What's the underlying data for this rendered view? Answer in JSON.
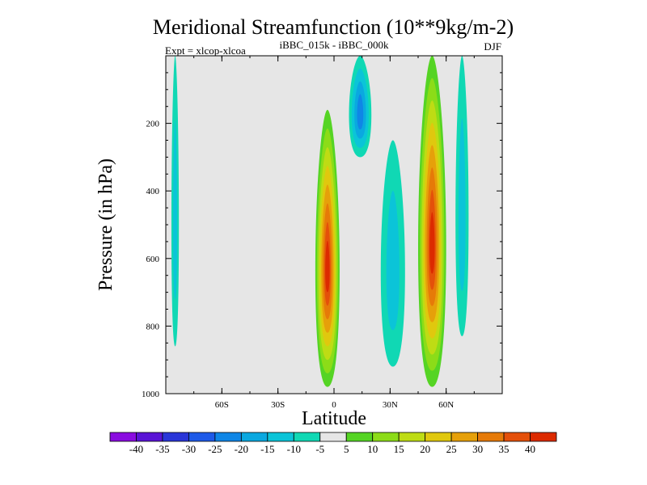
{
  "chart_data": {
    "type": "heatmap",
    "title": "Meridional Streamfunction (10**9kg/m-2)",
    "subtitle": "iBBC_015k - iBBC_000k",
    "experiment_label": "Expt = xlcop-xlcoa",
    "season": "DJF",
    "xlabel": "Latitude",
    "ylabel": "Pressure (in hPa)",
    "xlim": [
      -90,
      90
    ],
    "ylim": [
      1000,
      0
    ],
    "x_ticks": [
      {
        "value": -60,
        "label": "60S"
      },
      {
        "value": -30,
        "label": "30S"
      },
      {
        "value": 0,
        "label": "0"
      },
      {
        "value": 30,
        "label": "30N"
      },
      {
        "value": 60,
        "label": "60N"
      }
    ],
    "y_ticks": [
      {
        "value": 200,
        "label": "200"
      },
      {
        "value": 400,
        "label": "400"
      },
      {
        "value": 600,
        "label": "600"
      },
      {
        "value": 800,
        "label": "800"
      },
      {
        "value": 1000,
        "label": "1000"
      }
    ],
    "background_color": "#e6e6e6",
    "colorbar": {
      "levels": [
        "-40",
        "-35",
        "-30",
        "-25",
        "-20",
        "-15",
        "-10",
        "-5",
        "5",
        "10",
        "15",
        "20",
        "25",
        "30",
        "35",
        "40"
      ],
      "colors": [
        "#8a0ce0",
        "#5a14d6",
        "#2a36d8",
        "#1e5ae8",
        "#0f86e6",
        "#0aa8e0",
        "#0bc4d8",
        "#10d8b4",
        "#e6e6e6",
        "#55d424",
        "#8cdc18",
        "#bedc14",
        "#e0c80e",
        "#e6a00a",
        "#e67a08",
        "#e4500a",
        "#dc2a00"
      ]
    },
    "features": [
      {
        "name": "cell-10S-3N",
        "lat_range": [
          -10,
          3
        ],
        "p_range": [
          160,
          980
        ],
        "peak_value": 40,
        "sign": "positive"
      },
      {
        "name": "cell-45N-60N",
        "lat_range": [
          45,
          60
        ],
        "p_range": [
          0,
          980
        ],
        "peak_value": 40,
        "sign": "positive"
      },
      {
        "name": "cell-10N-20N-upper",
        "lat_range": [
          8,
          20
        ],
        "p_range": [
          0,
          300
        ],
        "peak_value": -20,
        "sign": "negative"
      },
      {
        "name": "cell-25N-38N",
        "lat_range": [
          25,
          38
        ],
        "p_range": [
          250,
          920
        ],
        "peak_value": -10,
        "sign": "negative"
      },
      {
        "name": "cell-65N-72N",
        "lat_range": [
          65,
          72
        ],
        "p_range": [
          0,
          830
        ],
        "peak_value": -10,
        "sign": "negative"
      },
      {
        "name": "cell-87S-83S",
        "lat_range": [
          -87,
          -83
        ],
        "p_range": [
          0,
          860
        ],
        "peak_value": -10,
        "sign": "negative"
      }
    ]
  }
}
